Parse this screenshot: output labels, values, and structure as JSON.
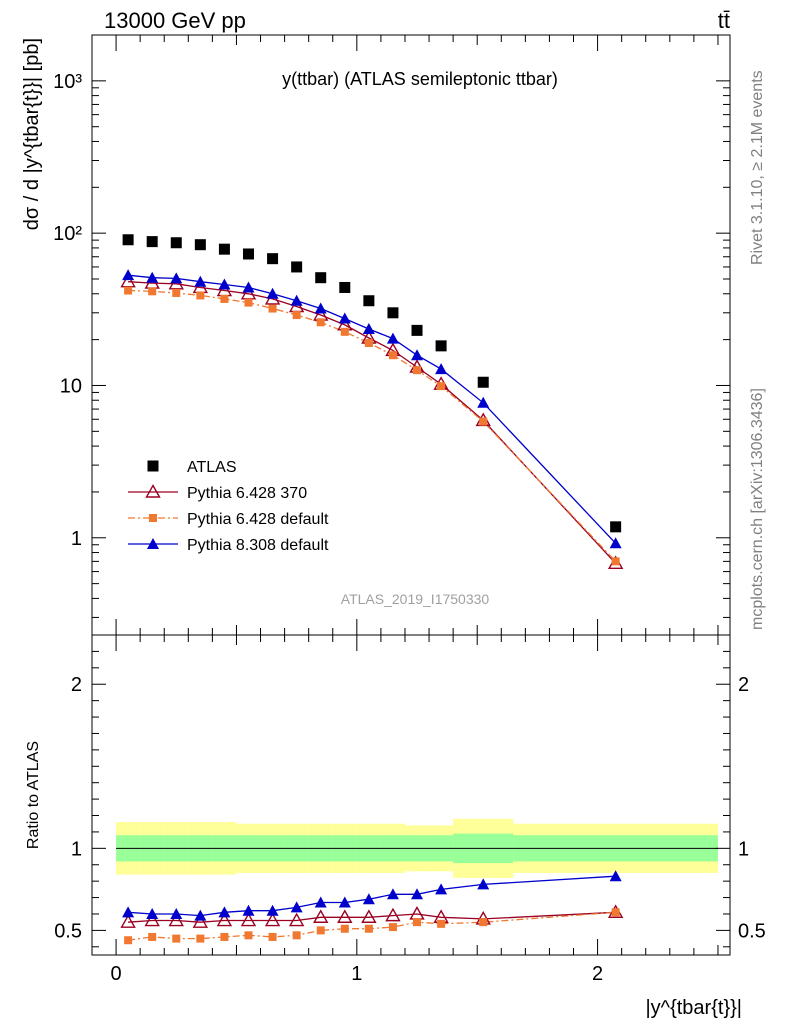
{
  "header": {
    "energy_label": "13000 GeV pp",
    "process_label": "tt̄"
  },
  "side_labels": {
    "rivet": "Rivet 3.1.10, ≥ 2.1M events",
    "mcplots": "mcplots.cern.ch [arXiv:1306.3436]"
  },
  "chart_data": [
    {
      "type": "scatter",
      "panel": "main",
      "title": "y(ttbar) (ATLAS semileptonic ttbar)",
      "ylabel": "dσ / d |y^{tbar{t}}| [pb]",
      "yscale": "log",
      "ylim": [
        0.23,
        2000
      ],
      "xlim": [
        -0.1,
        2.55
      ],
      "y_tick_labels": [
        "1",
        "10",
        "10²",
        "10³"
      ],
      "analysis_label": "ATLAS_2019_I1750330",
      "legend_position": "lower-left",
      "x": [
        0.05,
        0.15,
        0.25,
        0.35,
        0.45,
        0.55,
        0.65,
        0.75,
        0.85,
        0.95,
        1.05,
        1.15,
        1.25,
        1.35,
        1.525,
        2.075
      ],
      "series": [
        {
          "name": "ATLAS",
          "color": "#000000",
          "marker": "square",
          "values": [
            90.5,
            88,
            86.5,
            84,
            78.5,
            73,
            68,
            60,
            51,
            44,
            36,
            30,
            23,
            18.2,
            10.5,
            1.18
          ]
        },
        {
          "name": "Pythia 6.428 370",
          "color": "#990022",
          "marker": "triangle-open",
          "values": [
            48,
            47,
            46.5,
            44,
            42,
            40,
            37,
            33,
            29,
            25,
            20.5,
            17,
            13.2,
            10.2,
            5.9,
            0.68
          ]
        },
        {
          "name": "Pythia 6.428 default",
          "color": "#f07830",
          "marker": "square-small",
          "dash": "dashdot",
          "values": [
            42,
            41.5,
            40.5,
            39,
            37,
            35,
            32,
            29,
            26,
            22.5,
            19,
            15.8,
            12.6,
            9.9,
            5.8,
            0.7
          ]
        },
        {
          "name": "Pythia 8.308 default",
          "color": "#0000cc",
          "marker": "triangle",
          "values": [
            53,
            51,
            50.5,
            48,
            46,
            44,
            40,
            36,
            32,
            27.5,
            23.5,
            20.3,
            15.8,
            12.8,
            7.7,
            0.92
          ]
        }
      ]
    },
    {
      "type": "line",
      "panel": "ratio",
      "ylabel": "Ratio to ATLAS",
      "xlabel": "|y^{tbar{t}}|",
      "ylim": [
        0.35,
        2.3
      ],
      "xlim": [
        -0.1,
        2.55
      ],
      "x_ticks": [
        0,
        1,
        2
      ],
      "y_ticks": [
        0.5,
        1,
        2
      ],
      "bands": {
        "edges": [
          0,
          0.1,
          0.2,
          0.3,
          0.4,
          0.5,
          0.6,
          0.7,
          0.8,
          0.9,
          1.0,
          1.1,
          1.2,
          1.3,
          1.4,
          1.65,
          2.5
        ],
        "yellow_low": [
          0.84,
          0.84,
          0.84,
          0.84,
          0.84,
          0.85,
          0.85,
          0.85,
          0.85,
          0.85,
          0.85,
          0.85,
          0.86,
          0.86,
          0.82,
          0.85
        ],
        "yellow_high": [
          1.16,
          1.16,
          1.16,
          1.16,
          1.16,
          1.15,
          1.15,
          1.15,
          1.15,
          1.15,
          1.15,
          1.15,
          1.14,
          1.14,
          1.18,
          1.15
        ],
        "green_low": [
          0.92,
          0.92,
          0.92,
          0.92,
          0.92,
          0.92,
          0.92,
          0.92,
          0.92,
          0.92,
          0.92,
          0.92,
          0.92,
          0.92,
          0.91,
          0.92
        ],
        "green_high": [
          1.08,
          1.08,
          1.08,
          1.08,
          1.08,
          1.08,
          1.08,
          1.08,
          1.08,
          1.08,
          1.08,
          1.08,
          1.08,
          1.08,
          1.09,
          1.08
        ]
      },
      "x": [
        0.05,
        0.15,
        0.25,
        0.35,
        0.45,
        0.55,
        0.65,
        0.75,
        0.85,
        0.95,
        1.05,
        1.15,
        1.25,
        1.35,
        1.525,
        2.075
      ],
      "series": [
        {
          "name": "Pythia 6.428 370",
          "color": "#990022",
          "marker": "triangle-open",
          "values": [
            0.55,
            0.56,
            0.56,
            0.55,
            0.56,
            0.56,
            0.56,
            0.56,
            0.58,
            0.58,
            0.58,
            0.59,
            0.6,
            0.58,
            0.57,
            0.61
          ]
        },
        {
          "name": "Pythia 6.428 default",
          "color": "#f07830",
          "marker": "square-small",
          "dash": "dashdot",
          "values": [
            0.44,
            0.46,
            0.45,
            0.45,
            0.46,
            0.47,
            0.46,
            0.47,
            0.5,
            0.51,
            0.51,
            0.52,
            0.55,
            0.54,
            0.55,
            0.61
          ]
        },
        {
          "name": "Pythia 8.308 default",
          "color": "#0000cc",
          "marker": "triangle",
          "values": [
            0.61,
            0.6,
            0.6,
            0.59,
            0.61,
            0.62,
            0.62,
            0.64,
            0.67,
            0.67,
            0.69,
            0.72,
            0.72,
            0.75,
            0.78,
            0.83
          ]
        }
      ]
    }
  ]
}
